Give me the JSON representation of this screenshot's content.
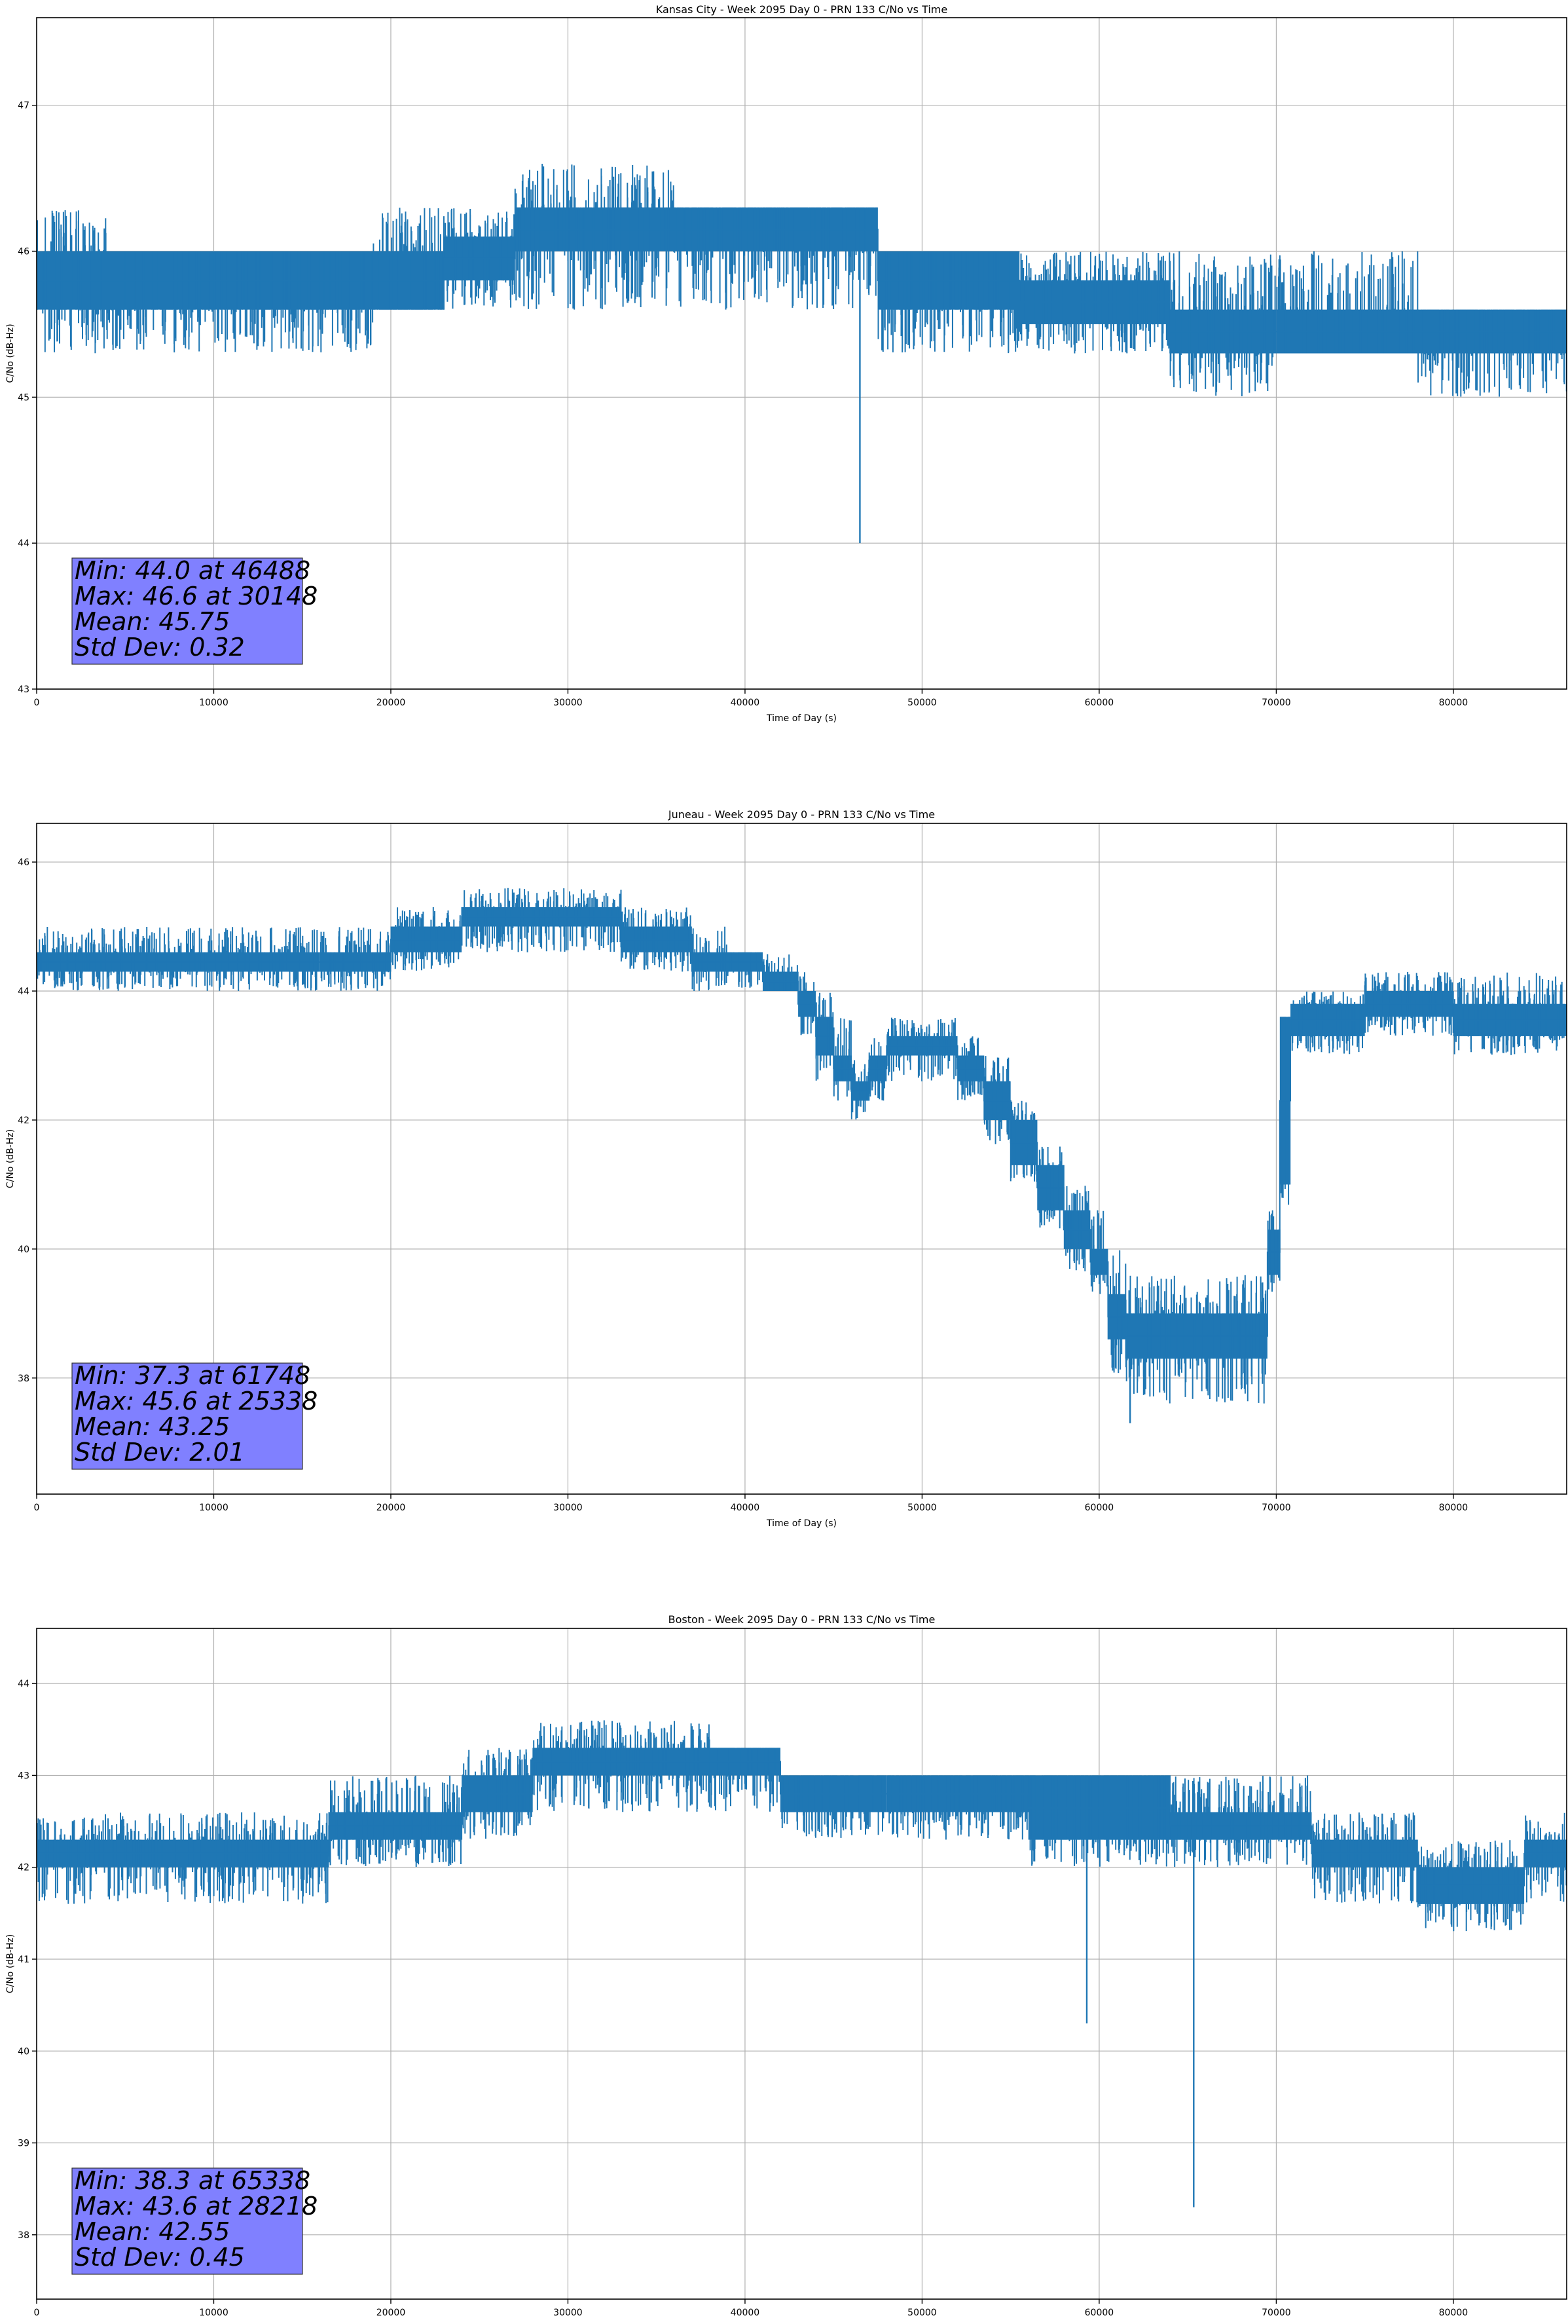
{
  "chart_data": [
    {
      "type": "line",
      "title": "Kansas City - Week 2095 Day 0 - PRN 133 C/No vs Time",
      "xlabel": "Time of Day (s)",
      "ylabel": "C/No (dB-Hz)",
      "xlim": [
        0,
        86400
      ],
      "ylim": [
        43.0,
        47.6
      ],
      "xticks": [
        0,
        10000,
        20000,
        30000,
        40000,
        50000,
        60000,
        70000,
        80000
      ],
      "yticks": [
        43,
        44,
        45,
        46,
        47
      ],
      "grid": true,
      "color": "#1f77b4",
      "series": [
        {
          "bands": [
            {
              "x0": 0,
              "x1": 4000,
              "lo": 45.6,
              "hi": 46.0,
              "spikeLo": 45.3,
              "spikeHi": 46.3
            },
            {
              "x0": 4000,
              "x1": 19000,
              "lo": 45.6,
              "hi": 46.0,
              "spikeLo": 45.3,
              "spikeHi": 46.0
            },
            {
              "x0": 19000,
              "x1": 23000,
              "lo": 45.6,
              "hi": 46.0,
              "spikeLo": 45.6,
              "spikeHi": 46.3
            },
            {
              "x0": 23000,
              "x1": 27000,
              "lo": 45.8,
              "hi": 46.1,
              "spikeLo": 45.6,
              "spikeHi": 46.3
            },
            {
              "x0": 27000,
              "x1": 36000,
              "lo": 46.0,
              "hi": 46.3,
              "spikeLo": 45.6,
              "spikeHi": 46.6
            },
            {
              "x0": 36000,
              "x1": 47500,
              "lo": 46.0,
              "hi": 46.3,
              "spikeLo": 45.6,
              "spikeHi": 46.3
            },
            {
              "x0": 47500,
              "x1": 55500,
              "lo": 45.6,
              "hi": 46.0,
              "spikeLo": 45.3,
              "spikeHi": 46.0
            },
            {
              "x0": 55500,
              "x1": 64000,
              "lo": 45.5,
              "hi": 45.8,
              "spikeLo": 45.3,
              "spikeHi": 46.0
            },
            {
              "x0": 64000,
              "x1": 70000,
              "lo": 45.3,
              "hi": 45.6,
              "spikeLo": 45.0,
              "spikeHi": 46.0
            },
            {
              "x0": 70000,
              "x1": 78000,
              "lo": 45.3,
              "hi": 45.6,
              "spikeLo": 45.3,
              "spikeHi": 46.0
            },
            {
              "x0": 78000,
              "x1": 86400,
              "lo": 45.3,
              "hi": 45.6,
              "spikeLo": 45.0,
              "spikeHi": 45.6
            }
          ],
          "spikes": [
            {
              "x": 46488,
              "y": 44.0
            }
          ]
        }
      ],
      "stats": {
        "min": "Min: 44.0 at 46488",
        "max": "Max: 46.6 at 30148",
        "mean": "Mean: 45.75",
        "std": "Std Dev: 0.32"
      },
      "statsBoxColor": "#8080ff"
    },
    {
      "type": "line",
      "title": "Juneau - Week 2095 Day 0 - PRN 133 C/No vs Time",
      "xlabel": "Time of Day (s)",
      "ylabel": "C/No (dB-Hz)",
      "xlim": [
        0,
        86400
      ],
      "ylim": [
        36.2,
        46.6
      ],
      "xticks": [
        0,
        10000,
        20000,
        30000,
        40000,
        50000,
        60000,
        70000,
        80000
      ],
      "yticks": [
        38,
        40,
        42,
        44,
        46
      ],
      "grid": true,
      "color": "#1f77b4",
      "series": [
        {
          "bands": [
            {
              "x0": 0,
              "x1": 16000,
              "lo": 44.3,
              "hi": 44.6,
              "spikeLo": 44.0,
              "spikeHi": 45.0
            },
            {
              "x0": 16000,
              "x1": 20000,
              "lo": 44.3,
              "hi": 44.6,
              "spikeLo": 44.0,
              "spikeHi": 45.0
            },
            {
              "x0": 20000,
              "x1": 24000,
              "lo": 44.6,
              "hi": 45.0,
              "spikeLo": 44.3,
              "spikeHi": 45.3
            },
            {
              "x0": 24000,
              "x1": 29000,
              "lo": 45.0,
              "hi": 45.3,
              "spikeLo": 44.6,
              "spikeHi": 45.6
            },
            {
              "x0": 29000,
              "x1": 33000,
              "lo": 45.0,
              "hi": 45.3,
              "spikeLo": 44.6,
              "spikeHi": 45.6
            },
            {
              "x0": 33000,
              "x1": 37000,
              "lo": 44.6,
              "hi": 45.0,
              "spikeLo": 44.3,
              "spikeHi": 45.3
            },
            {
              "x0": 37000,
              "x1": 39000,
              "lo": 44.3,
              "hi": 44.6,
              "spikeLo": 44.0,
              "spikeHi": 45.0
            },
            {
              "x0": 39000,
              "x1": 41000,
              "lo": 44.3,
              "hi": 44.6,
              "spikeLo": 44.0,
              "spikeHi": 44.6
            },
            {
              "x0": 41000,
              "x1": 43000,
              "lo": 44.0,
              "hi": 44.3,
              "spikeLo": 44.0,
              "spikeHi": 44.6
            },
            {
              "x0": 43000,
              "x1": 44000,
              "lo": 43.6,
              "hi": 44.0,
              "spikeLo": 43.3,
              "spikeHi": 44.3
            },
            {
              "x0": 44000,
              "x1": 45000,
              "lo": 43.0,
              "hi": 43.6,
              "spikeLo": 42.6,
              "spikeHi": 44.0
            },
            {
              "x0": 45000,
              "x1": 46000,
              "lo": 42.6,
              "hi": 43.0,
              "spikeLo": 42.3,
              "spikeHi": 43.6
            },
            {
              "x0": 46000,
              "x1": 47000,
              "lo": 42.3,
              "hi": 42.6,
              "spikeLo": 42.0,
              "spikeHi": 43.0
            },
            {
              "x0": 47000,
              "x1": 48000,
              "lo": 42.6,
              "hi": 43.0,
              "spikeLo": 42.3,
              "spikeHi": 43.3
            },
            {
              "x0": 48000,
              "x1": 52000,
              "lo": 43.0,
              "hi": 43.3,
              "spikeLo": 42.6,
              "spikeHi": 43.6
            },
            {
              "x0": 52000,
              "x1": 53500,
              "lo": 42.6,
              "hi": 43.0,
              "spikeLo": 42.3,
              "spikeHi": 43.3
            },
            {
              "x0": 53500,
              "x1": 55000,
              "lo": 42.0,
              "hi": 42.6,
              "spikeLo": 41.6,
              "spikeHi": 43.0
            },
            {
              "x0": 55000,
              "x1": 56500,
              "lo": 41.3,
              "hi": 42.0,
              "spikeLo": 41.0,
              "spikeHi": 42.3
            },
            {
              "x0": 56500,
              "x1": 58000,
              "lo": 40.6,
              "hi": 41.3,
              "spikeLo": 40.3,
              "spikeHi": 41.6
            },
            {
              "x0": 58000,
              "x1": 59500,
              "lo": 40.0,
              "hi": 40.6,
              "spikeLo": 39.6,
              "spikeHi": 41.0
            },
            {
              "x0": 59500,
              "x1": 60500,
              "lo": 39.6,
              "hi": 40.0,
              "spikeLo": 39.3,
              "spikeHi": 40.6
            },
            {
              "x0": 60500,
              "x1": 61500,
              "lo": 38.6,
              "hi": 39.3,
              "spikeLo": 38.0,
              "spikeHi": 40.0
            },
            {
              "x0": 61500,
              "x1": 66000,
              "lo": 38.3,
              "hi": 39.0,
              "spikeLo": 37.6,
              "spikeHi": 39.6
            },
            {
              "x0": 66000,
              "x1": 69500,
              "lo": 38.3,
              "hi": 39.0,
              "spikeLo": 37.6,
              "spikeHi": 39.6
            },
            {
              "x0": 69500,
              "x1": 70200,
              "lo": 39.6,
              "hi": 40.3,
              "spikeLo": 39.3,
              "spikeHi": 40.6
            },
            {
              "x0": 70200,
              "x1": 70800,
              "lo": 41.0,
              "hi": 43.6,
              "spikeLo": 40.6,
              "spikeHi": 43.6
            },
            {
              "x0": 70800,
              "x1": 75000,
              "lo": 43.3,
              "hi": 43.8,
              "spikeLo": 43.0,
              "spikeHi": 44.0
            },
            {
              "x0": 75000,
              "x1": 80000,
              "lo": 43.6,
              "hi": 44.0,
              "spikeLo": 43.3,
              "spikeHi": 44.3
            },
            {
              "x0": 80000,
              "x1": 86400,
              "lo": 43.3,
              "hi": 43.8,
              "spikeLo": 43.0,
              "spikeHi": 44.3
            }
          ],
          "spikes": [
            {
              "x": 61748,
              "y": 37.3
            }
          ]
        }
      ],
      "stats": {
        "min": "Min: 37.3 at 61748",
        "max": "Max: 45.6 at 25338",
        "mean": "Mean: 43.25",
        "std": "Std Dev: 2.01"
      },
      "statsBoxColor": "#8080ff"
    },
    {
      "type": "line",
      "title": "Boston - Week 2095 Day 0 - PRN 133 C/No vs Time",
      "xlabel": "Time of Day (s)",
      "ylabel": "C/No (dB-Hz)",
      "xlim": [
        0,
        86400
      ],
      "ylim": [
        37.3,
        44.6
      ],
      "xticks": [
        0,
        10000,
        20000,
        30000,
        40000,
        50000,
        60000,
        70000,
        80000
      ],
      "yticks": [
        38,
        39,
        40,
        41,
        42,
        43,
        44
      ],
      "grid": true,
      "color": "#1f77b4",
      "series": [
        {
          "bands": [
            {
              "x0": 0,
              "x1": 3000,
              "lo": 42.0,
              "hi": 42.3,
              "spikeLo": 41.6,
              "spikeHi": 42.6
            },
            {
              "x0": 3000,
              "x1": 16500,
              "lo": 42.0,
              "hi": 42.3,
              "spikeLo": 41.6,
              "spikeHi": 42.6
            },
            {
              "x0": 16500,
              "x1": 20000,
              "lo": 42.3,
              "hi": 42.6,
              "spikeLo": 42.0,
              "spikeHi": 43.0
            },
            {
              "x0": 20000,
              "x1": 24000,
              "lo": 42.3,
              "hi": 42.6,
              "spikeLo": 42.0,
              "spikeHi": 43.0
            },
            {
              "x0": 24000,
              "x1": 28000,
              "lo": 42.6,
              "hi": 43.0,
              "spikeLo": 42.3,
              "spikeHi": 43.3
            },
            {
              "x0": 28000,
              "x1": 33000,
              "lo": 43.0,
              "hi": 43.3,
              "spikeLo": 42.6,
              "spikeHi": 43.6
            },
            {
              "x0": 33000,
              "x1": 38000,
              "lo": 43.0,
              "hi": 43.3,
              "spikeLo": 42.6,
              "spikeHi": 43.6
            },
            {
              "x0": 38000,
              "x1": 42000,
              "lo": 43.0,
              "hi": 43.3,
              "spikeLo": 42.6,
              "spikeHi": 43.3
            },
            {
              "x0": 42000,
              "x1": 48000,
              "lo": 42.6,
              "hi": 43.0,
              "spikeLo": 42.3,
              "spikeHi": 43.0
            },
            {
              "x0": 48000,
              "x1": 56000,
              "lo": 42.6,
              "hi": 43.0,
              "spikeLo": 42.3,
              "spikeHi": 43.0
            },
            {
              "x0": 56000,
              "x1": 64000,
              "lo": 42.3,
              "hi": 43.0,
              "spikeLo": 42.0,
              "spikeHi": 43.0
            },
            {
              "x0": 64000,
              "x1": 72000,
              "lo": 42.3,
              "hi": 42.6,
              "spikeLo": 42.0,
              "spikeHi": 43.0
            },
            {
              "x0": 72000,
              "x1": 78000,
              "lo": 42.0,
              "hi": 42.3,
              "spikeLo": 41.6,
              "spikeHi": 42.6
            },
            {
              "x0": 78000,
              "x1": 84000,
              "lo": 41.6,
              "hi": 42.0,
              "spikeLo": 41.3,
              "spikeHi": 42.3
            },
            {
              "x0": 84000,
              "x1": 86400,
              "lo": 42.0,
              "hi": 42.3,
              "spikeLo": 41.6,
              "spikeHi": 42.6
            }
          ],
          "spikes": [
            {
              "x": 59300,
              "y": 40.3
            },
            {
              "x": 65338,
              "y": 38.3
            }
          ]
        }
      ],
      "stats": {
        "min": "Min: 38.3 at 65338",
        "max": "Max: 43.6 at 28218",
        "mean": "Mean: 42.55",
        "std": "Std Dev: 0.45"
      },
      "statsBoxColor": "#8080ff"
    }
  ]
}
